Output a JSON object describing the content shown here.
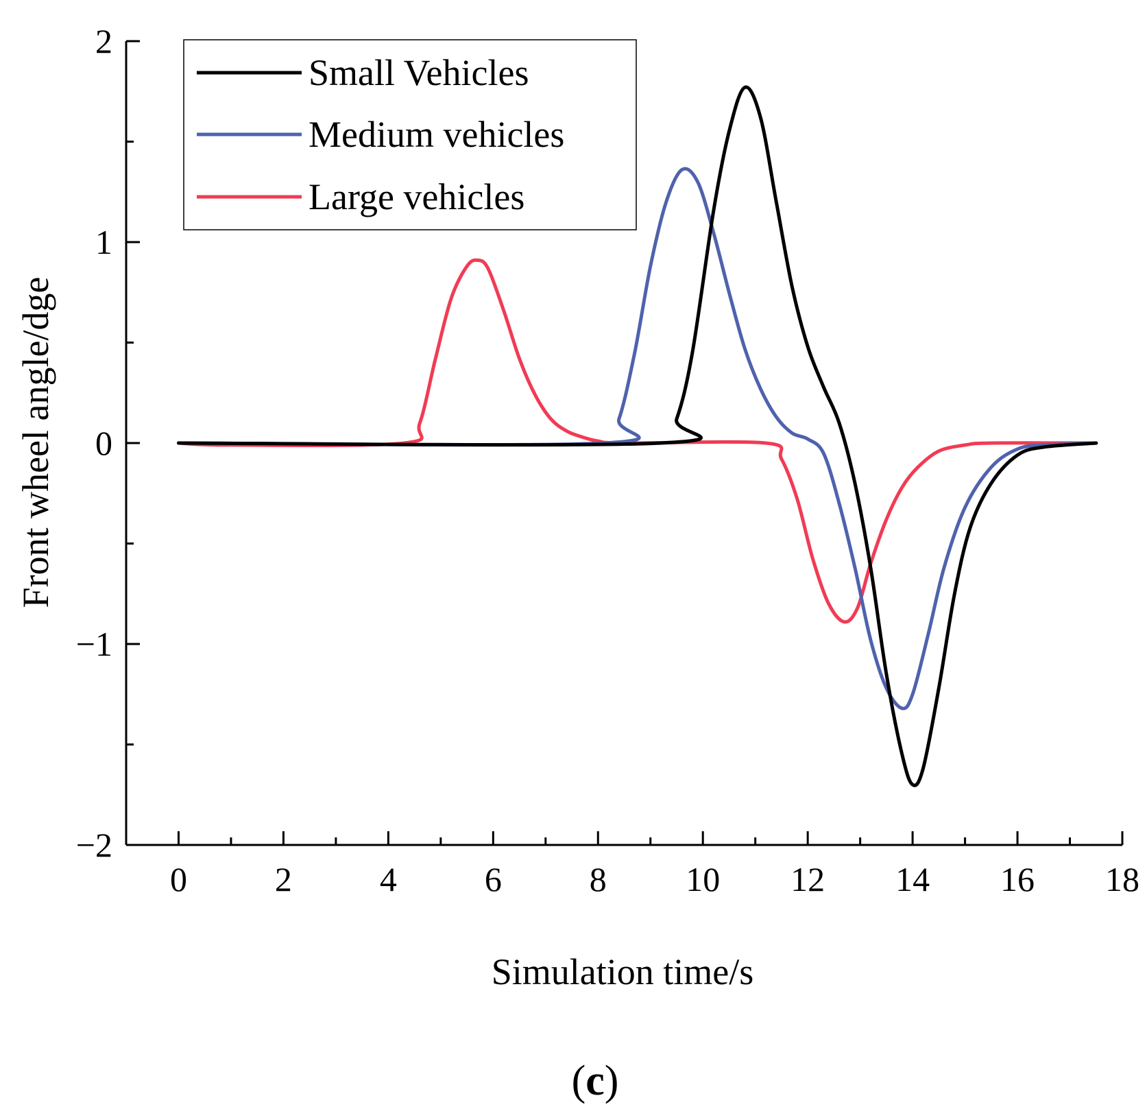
{
  "chart_data": {
    "type": "line",
    "title": "",
    "xlabel": "Simulation time/s",
    "ylabel": "Front wheel angle/dge",
    "xlim": [
      -1,
      18
    ],
    "ylim": [
      -2,
      2
    ],
    "x_ticks": [
      "0",
      "2",
      "4",
      "6",
      "8",
      "10",
      "12",
      "14",
      "16",
      "18"
    ],
    "y_ticks": [
      "−2",
      "−1",
      "0",
      "1",
      "2"
    ],
    "grid": false,
    "legend_position": "top-left",
    "series": [
      {
        "name": "Small Vehicles",
        "color": "#000000",
        "points": [
          [
            0,
            0
          ],
          [
            9.2,
            0
          ],
          [
            9.5,
            0.12
          ],
          [
            9.8,
            0.45
          ],
          [
            10.2,
            1.15
          ],
          [
            10.5,
            1.55
          ],
          [
            10.8,
            1.77
          ],
          [
            11.1,
            1.62
          ],
          [
            11.4,
            1.2
          ],
          [
            11.7,
            0.78
          ],
          [
            12.0,
            0.48
          ],
          [
            12.3,
            0.28
          ],
          [
            12.6,
            0.1
          ],
          [
            12.9,
            -0.2
          ],
          [
            13.2,
            -0.62
          ],
          [
            13.5,
            -1.15
          ],
          [
            13.8,
            -1.55
          ],
          [
            14.0,
            -1.7
          ],
          [
            14.2,
            -1.62
          ],
          [
            14.5,
            -1.22
          ],
          [
            14.8,
            -0.75
          ],
          [
            15.1,
            -0.42
          ],
          [
            15.5,
            -0.2
          ],
          [
            16.0,
            -0.06
          ],
          [
            16.5,
            -0.02
          ],
          [
            17.5,
            0
          ]
        ]
      },
      {
        "name": "Medium vehicles",
        "color": "#4f62ad",
        "points": [
          [
            0,
            0
          ],
          [
            8.1,
            0
          ],
          [
            8.4,
            0.12
          ],
          [
            8.7,
            0.45
          ],
          [
            9.0,
            0.88
          ],
          [
            9.3,
            1.2
          ],
          [
            9.6,
            1.36
          ],
          [
            9.9,
            1.3
          ],
          [
            10.2,
            1.05
          ],
          [
            10.5,
            0.75
          ],
          [
            10.8,
            0.47
          ],
          [
            11.1,
            0.27
          ],
          [
            11.4,
            0.13
          ],
          [
            11.7,
            0.05
          ],
          [
            12.0,
            0.02
          ],
          [
            12.3,
            -0.05
          ],
          [
            12.6,
            -0.3
          ],
          [
            12.9,
            -0.62
          ],
          [
            13.2,
            -0.98
          ],
          [
            13.5,
            -1.22
          ],
          [
            13.8,
            -1.32
          ],
          [
            14.0,
            -1.25
          ],
          [
            14.3,
            -0.95
          ],
          [
            14.6,
            -0.62
          ],
          [
            15.0,
            -0.32
          ],
          [
            15.5,
            -0.12
          ],
          [
            16.0,
            -0.03
          ],
          [
            16.5,
            -0.01
          ],
          [
            17.5,
            0
          ]
        ]
      },
      {
        "name": "Large vehicles",
        "color": "#f03c54",
        "points": [
          [
            0,
            0
          ],
          [
            1,
            -0.01
          ],
          [
            4.3,
            0
          ],
          [
            4.6,
            0.1
          ],
          [
            4.9,
            0.42
          ],
          [
            5.2,
            0.72
          ],
          [
            5.5,
            0.88
          ],
          [
            5.7,
            0.91
          ],
          [
            5.9,
            0.87
          ],
          [
            6.2,
            0.66
          ],
          [
            6.5,
            0.42
          ],
          [
            6.8,
            0.24
          ],
          [
            7.1,
            0.12
          ],
          [
            7.4,
            0.06
          ],
          [
            7.7,
            0.03
          ],
          [
            8.0,
            0.01
          ],
          [
            8.5,
            0
          ],
          [
            11.2,
            0
          ],
          [
            11.5,
            -0.08
          ],
          [
            11.8,
            -0.28
          ],
          [
            12.1,
            -0.58
          ],
          [
            12.4,
            -0.8
          ],
          [
            12.7,
            -0.89
          ],
          [
            12.95,
            -0.82
          ],
          [
            13.2,
            -0.6
          ],
          [
            13.5,
            -0.38
          ],
          [
            13.8,
            -0.22
          ],
          [
            14.1,
            -0.12
          ],
          [
            14.5,
            -0.04
          ],
          [
            15.0,
            -0.01
          ],
          [
            15.5,
            0
          ],
          [
            17.5,
            0
          ]
        ]
      }
    ]
  },
  "panel_label": {
    "open": "(",
    "letter": "c",
    "close": ")"
  }
}
